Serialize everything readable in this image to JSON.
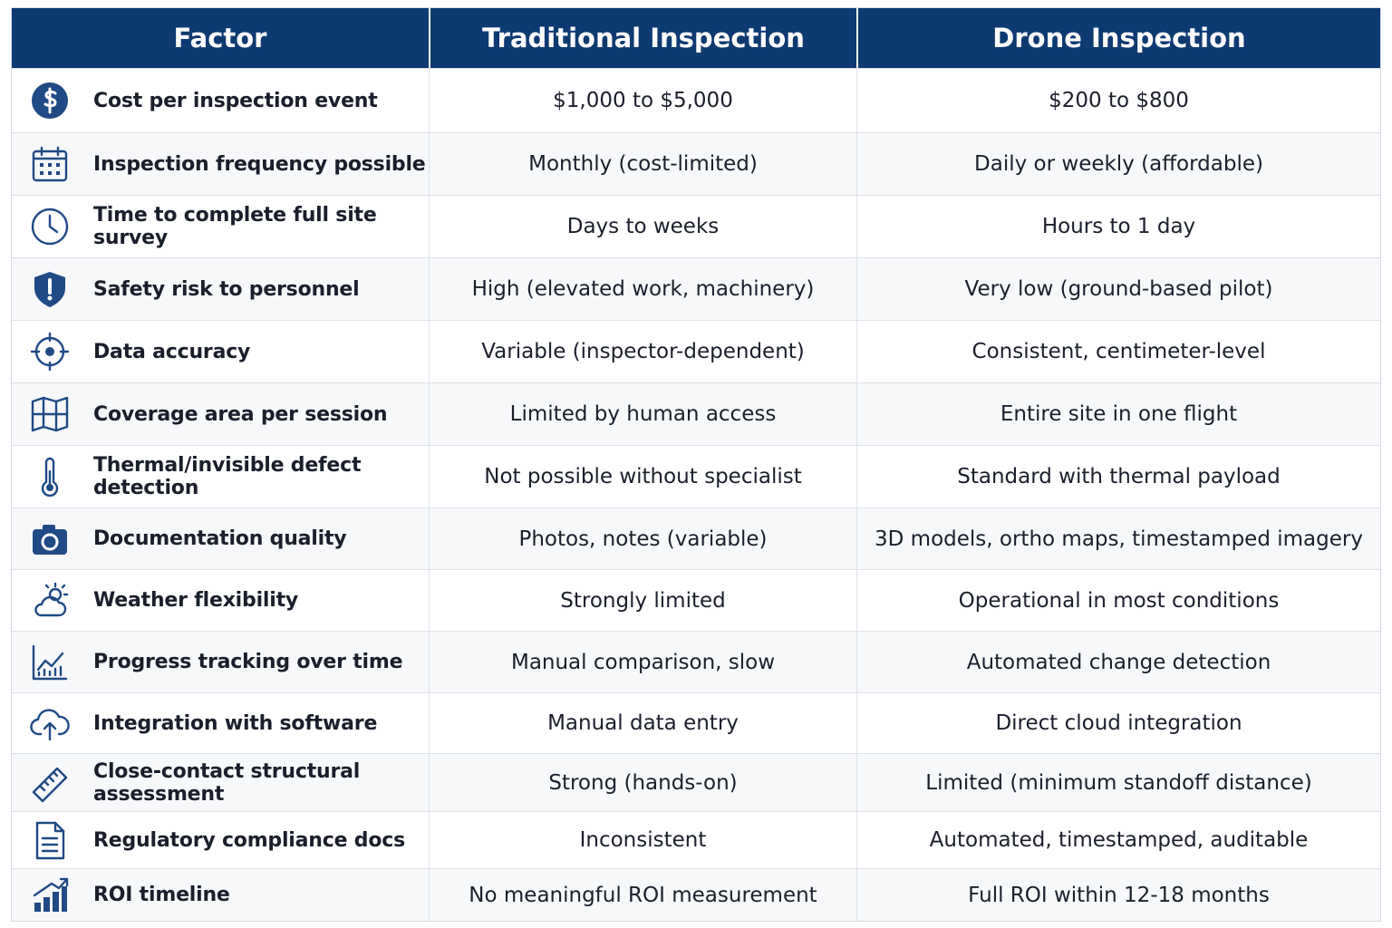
{
  "header": {
    "columns": [
      "Factor",
      "Traditional Inspection",
      "Drone Inspection"
    ]
  },
  "table": {
    "rows": [
      [
        "Cost per inspection event",
        "$1,000 to $5,000",
        "$200 to $800"
      ],
      [
        "Inspection frequency possible",
        "Monthly (cost-limited)",
        "Daily or weekly (affordable)"
      ],
      [
        "Time to complete full site survey",
        "Days to weeks",
        "Hours to 1 day"
      ],
      [
        "Safety risk to personnel",
        "High (elevated work, machinery)",
        "Very low (ground-based pilot)"
      ],
      [
        "Data accuracy",
        "Variable (inspector-dependent)",
        "Consistent, centimeter-level"
      ],
      [
        "Coverage area per session",
        "Limited by human access",
        "Entire site in one flight"
      ],
      [
        "Thermal/invisible defect detection",
        "Not possible without specialist",
        "Standard with thermal payload"
      ],
      [
        "Documentation quality",
        "Photos, notes (variable)",
        "3D models, ortho maps, timestamped imagery"
      ],
      [
        "Weather flexibility",
        "Strongly limited",
        "Operational in most conditions"
      ],
      [
        "Progress tracking over time",
        "Manual comparison, slow",
        "Automated change detection"
      ],
      [
        "Integration with software",
        "Manual data entry",
        "Direct cloud integration"
      ],
      [
        "Close-contact structural assessment",
        "Strong (hands-on)",
        "Limited (minimum standoff distance)"
      ],
      [
        "Regulatory compliance docs",
        "Inconsistent",
        "Automated, timestamped, auditable"
      ],
      [
        "ROI timeline",
        "No meaningful ROI measurement",
        "Full ROI within 12-18 months"
      ]
    ]
  }
}
